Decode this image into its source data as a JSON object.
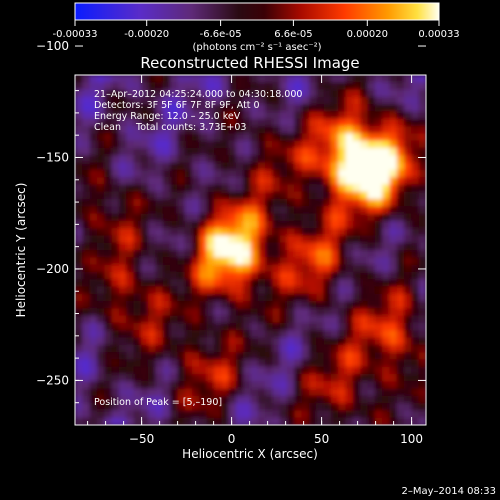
{
  "colorbar": {
    "tick_labels": [
      "-0.00033",
      "-0.00020",
      "-6.6e-05",
      "6.6e-05",
      "0.00020",
      "0.00033"
    ],
    "tick_values": [
      -0.00033,
      -0.0002,
      -6.6e-05,
      6.6e-05,
      0.0002,
      0.00033
    ],
    "range": [
      -0.00033,
      0.00033
    ],
    "unit_label": "(photons cm⁻² s⁻¹ asec⁻²)"
  },
  "chart_data": {
    "type": "heatmap",
    "title": "Reconstructed RHESSI Image",
    "xlabel": "Heliocentric X (arcsec)",
    "ylabel": "Heliocentric Y (arcsec)",
    "xlim": [
      -87,
      108
    ],
    "ylim": [
      -270,
      -113
    ],
    "xticks": [
      -50,
      0,
      50,
      100
    ],
    "yticks": [
      -100,
      -150,
      -200,
      -250
    ],
    "xtick_labels": [
      "−50",
      "0",
      "50",
      "100"
    ],
    "ytick_labels": [
      "−100",
      "−150",
      "−200",
      "−250"
    ],
    "annotations": [
      "21–Apr–2012 04:25:24.000 to 04:30:18.000",
      "Detectors: 3F 5F 6F 7F 8F 9F, Att 0",
      "Energy Range: 12.0 – 25.0 keV",
      "Clean     Total counts: 3.73E+03"
    ],
    "peak_label": "Position of Peak = [5,–190]",
    "peak_position": [
      5,
      -190
    ],
    "hotspots": [
      {
        "x": 0,
        "y": -192,
        "level": 1.0
      },
      {
        "x": 65,
        "y": -150,
        "level": 0.85
      },
      {
        "x": 85,
        "y": -155,
        "level": 0.7
      },
      {
        "x": 90,
        "y": -230,
        "level": 0.55
      },
      {
        "x": 45,
        "y": -195,
        "level": 0.5
      },
      {
        "x": -55,
        "y": -215,
        "level": 0.45
      },
      {
        "x": -15,
        "y": -245,
        "level": 0.42
      },
      {
        "x": 60,
        "y": -255,
        "level": 0.4
      },
      {
        "x": -70,
        "y": -175,
        "level": 0.35
      },
      {
        "x": 20,
        "y": -150,
        "level": 0.3
      }
    ],
    "grid": false,
    "colormap": "rhessi-blue-red-white"
  },
  "timestamp": "2–May–2014 08:33"
}
